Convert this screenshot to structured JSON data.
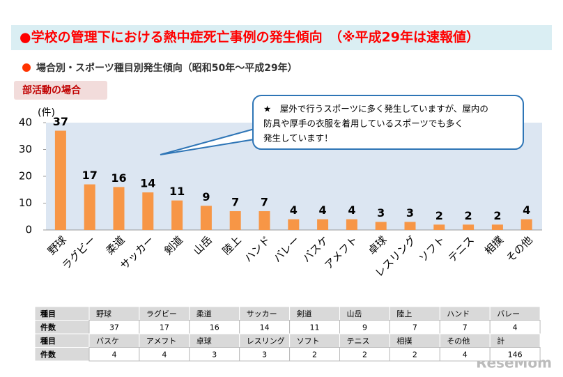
{
  "header": {
    "title": "●学校の管理下における熱中症死亡事例の発生傾向　（※平成29年は速報値）",
    "subtitle": "場合別・スポーツ種目別発生傾向（昭和50年～平成29年）",
    "section": "部活動の場合"
  },
  "chart_data": {
    "type": "bar",
    "y_label": "(件)",
    "categories": [
      "野球",
      "ラグビー",
      "柔道",
      "サッカー",
      "剣道",
      "山岳",
      "陸上",
      "ハンド",
      "バレー",
      "バスケ",
      "アメフト",
      "卓球",
      "レスリング",
      "ソフト",
      "テニス",
      "相撲",
      "その他"
    ],
    "values": [
      37,
      17,
      16,
      14,
      11,
      9,
      7,
      7,
      4,
      4,
      4,
      3,
      3,
      2,
      2,
      2,
      4
    ],
    "color": "#f79646",
    "ylim": [
      0,
      40
    ],
    "yticks": [
      0,
      10,
      20,
      30,
      40
    ],
    "annotation": [
      "★　屋外で行うスポーツに多く発生していますが、屋内の",
      "防具や厚手の衣服を着用しているスポーツでも多く",
      "発生しています！"
    ]
  },
  "table": {
    "row_headers": [
      "種目",
      "件数"
    ],
    "total_label": "計",
    "total": 146
  },
  "watermark": "ReseMom"
}
